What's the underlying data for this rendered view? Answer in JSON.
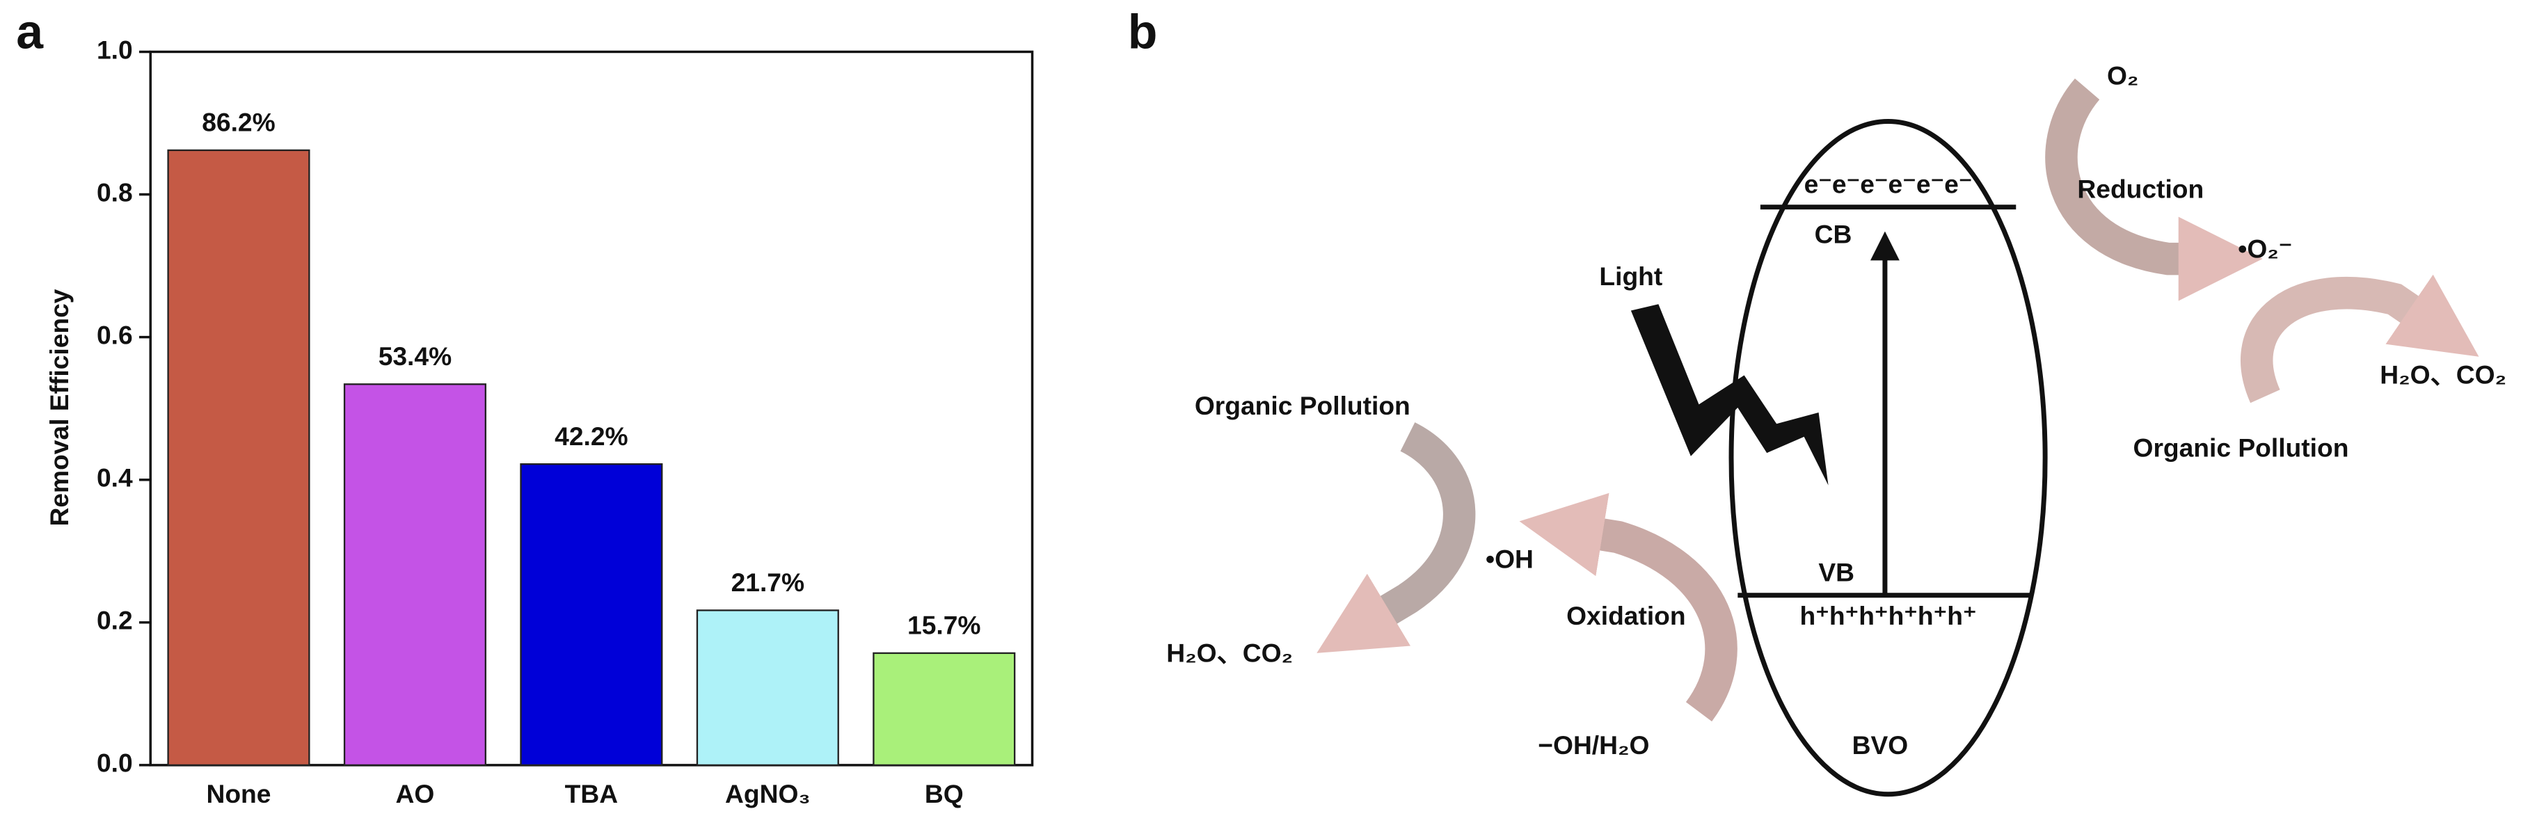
{
  "panels": {
    "a": "a",
    "b": "b"
  },
  "chart_data": {
    "type": "bar",
    "y_label": "Removal Efficiency",
    "categories": [
      "None",
      "AO",
      "TBA",
      "AgNO₃",
      "BQ"
    ],
    "values": [
      0.862,
      0.534,
      0.422,
      0.217,
      0.157
    ],
    "value_labels": [
      "86.2%",
      "53.4%",
      "42.2%",
      "21.7%",
      "15.7%"
    ],
    "colors": [
      "#c55a45",
      "#c453e6",
      "#0000d8",
      "#aef2f8",
      "#a9f07a"
    ],
    "ylim": [
      0,
      1
    ],
    "yticks": [
      {
        "value": 0,
        "label": "0.0"
      },
      0.2,
      0.4,
      0.6,
      0.8,
      {
        "value": 1,
        "label": "1.0"
      }
    ]
  },
  "diagram": {
    "electrons": "e⁻e⁻e⁻e⁻e⁻e⁻",
    "cb": "CB",
    "vb": "VB",
    "holes": "h⁺h⁺h⁺h⁺h⁺h⁺",
    "bvo": "BVO",
    "light": "Light",
    "left_pollution": "Organic Pollution",
    "oh_radical": "•OH",
    "oxidation": "Oxidation",
    "left_products": "H₂O、CO₂",
    "oh_source": "−OH/H₂O",
    "o2": "O₂",
    "reduction": "Reduction",
    "superoxide": "•O₂⁻",
    "right_products": "H₂O、CO₂",
    "right_pollution": "Organic Pollution"
  }
}
